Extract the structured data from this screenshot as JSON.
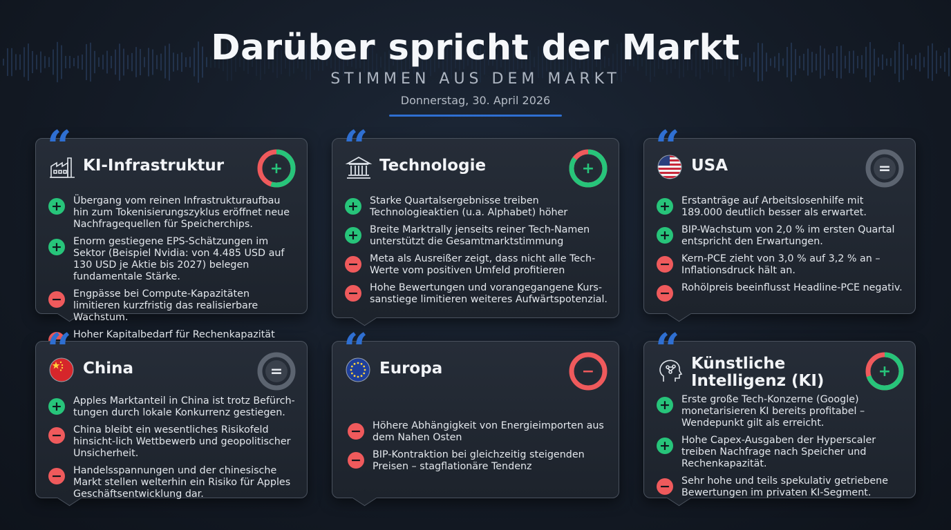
{
  "header": {
    "title": "Darüber spricht der Markt",
    "subtitle": "STIMMEN AUS DEM MARKT",
    "date": "Donnerstag, 30. April 2026"
  },
  "colors": {
    "accent": "#2f6fd1",
    "positive": "#27c47a",
    "negative": "#ef5a5c",
    "neutral": "#5c6470"
  },
  "cards": [
    {
      "title": "KI-Infrastruktur",
      "icon": "factory-icon",
      "sentiment": "positive",
      "gauge_positive_share": 0.55,
      "items": [
        {
          "type": "positive",
          "text": "Übergang vom reinen Infrastrukturaufbau hin zum Tokenisierungszyklus eröffnet neue Nachfragequellen für Speicherchips."
        },
        {
          "type": "positive",
          "text": "Enorm gestiegene EPS-Schätzungen im Sektor (Beispiel Nvidia: von 4.485 USD auf 130 USD je Aktie bis 2027) belegen fundamentale Stärke."
        },
        {
          "type": "negative",
          "text": "Engpässe bei Compute-Kapazitäten limitieren kurzfristig das realisierbare Wachstum."
        },
        {
          "type": "negative",
          "text": "Hoher Kapitalbedarf für Rechenkapazität (Compute) bremst Profitabilität."
        }
      ]
    },
    {
      "title": "Technologie",
      "icon": "bank-building-icon",
      "sentiment": "positive",
      "gauge_positive_share": 0.85,
      "items": [
        {
          "type": "positive",
          "text": "Starke Quartalsergebnisse treiben Technologieaktien (u.a. Alphabet) höher"
        },
        {
          "type": "positive",
          "text": "Breite Marktrally jenseits reiner Tech-Namen unterstützt die Gesamtmarktstimmung"
        },
        {
          "type": "negative",
          "text": "Meta als Ausreißer zeigt, dass nicht alle Tech-Werte vom positiven Umfeld profitieren"
        },
        {
          "type": "negative",
          "text": "Hohe Bewertungen und vorangegangene Kurs-sanstiege limitieren weiteres Aufwärtspotenzial."
        }
      ]
    },
    {
      "title": "USA",
      "icon": "us-flag-icon",
      "sentiment": "neutral",
      "gauge_positive_share": 0,
      "items": [
        {
          "type": "positive",
          "text": "Erstanträge auf Arbeitslosenhilfe mit 189.000 deutlich besser als erwartet."
        },
        {
          "type": "positive",
          "text": "BIP-Wachstum von 2,0 % im ersten Quartal entspricht den Erwartungen."
        },
        {
          "type": "negative",
          "text": "Kern-PCE zieht von 3,0 % auf 3,2 % an – Inflationsdruck hält an."
        },
        {
          "type": "negative",
          "text": "Rohölpreis beeinflusst Headline-PCE negativ."
        }
      ]
    },
    {
      "title": "China",
      "icon": "china-flag-icon",
      "sentiment": "neutral",
      "gauge_positive_share": 0,
      "items": [
        {
          "type": "positive",
          "text": "Apples Marktanteil in China ist trotz Befürch-tungen durch lokale Konkurrenz gestiegen."
        },
        {
          "type": "negative",
          "text": "China bleibt ein wesentliches Risikofeld hinsicht-lich Wettbewerb und geopolitischer Unsicherheit."
        },
        {
          "type": "negative",
          "text": "Handelsspannungen und der chinesische Markt stellen welterhin ein Risiko für Apples Geschäftsentwicklung dar."
        }
      ]
    },
    {
      "title": "Europa",
      "icon": "eu-flag-icon",
      "sentiment": "negative",
      "gauge_positive_share": 0,
      "items": [
        {
          "type": "negative",
          "text": "Höhere Abhängigkeit von Energieimporten aus dem Nahen Osten"
        },
        {
          "type": "negative",
          "text": "BIP-Kontraktion bei gleichzeitig steigenden Preisen – stagflationäre Tendenz"
        }
      ]
    },
    {
      "title": "Künstliche Intelligenz (KI)",
      "icon": "ai-head-icon",
      "sentiment": "positive",
      "gauge_positive_share": 0.7,
      "items": [
        {
          "type": "positive",
          "text": "Erste große Tech-Konzerne (Google) monetarisieren KI bereits profitabel – Wendepunkt gilt als erreicht."
        },
        {
          "type": "positive",
          "text": "Hohe Capex-Ausgaben der Hyperscaler treiben Nachfrage nach Speicher und Rechenkapazität."
        },
        {
          "type": "negative",
          "text": "Sehr hohe und teils spekulativ getriebene Bewertungen im privaten KI-Segment."
        }
      ]
    }
  ]
}
